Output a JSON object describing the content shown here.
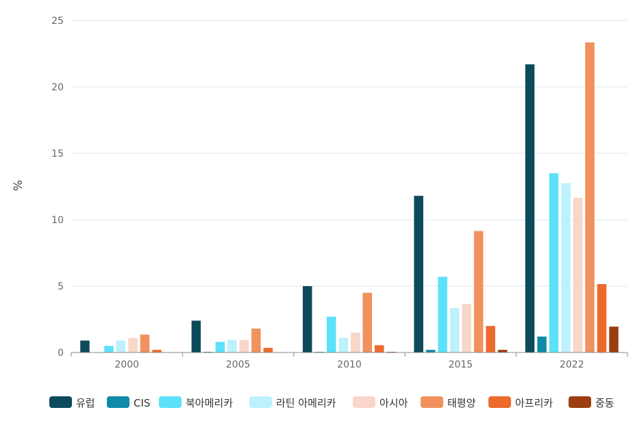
{
  "chart_data": {
    "type": "bar",
    "title": "",
    "xlabel": "",
    "ylabel": "%",
    "ylim": [
      0,
      25
    ],
    "yticks": [
      0,
      5,
      10,
      15,
      20,
      25
    ],
    "grid": true,
    "legend_position": "bottom",
    "categories": [
      "2000",
      "2005",
      "2010",
      "2015",
      "2022"
    ],
    "series": [
      {
        "name": "유럽",
        "color": "#0d4a5c",
        "values": [
          0.9,
          2.4,
          5.0,
          11.8,
          21.7
        ]
      },
      {
        "name": "CIS",
        "color": "#0f8aa8",
        "values": [
          0.0,
          0.05,
          0.05,
          0.2,
          1.2
        ]
      },
      {
        "name": "북아메리카",
        "color": "#5ce1fa",
        "values": [
          0.5,
          0.8,
          2.7,
          5.7,
          13.5
        ]
      },
      {
        "name": "라틴 아메리카",
        "color": "#bdf1fb",
        "values": [
          0.9,
          0.95,
          1.1,
          3.35,
          12.75
        ]
      },
      {
        "name": "아시아",
        "color": "#f8d6c8",
        "values": [
          1.1,
          0.95,
          1.5,
          3.65,
          11.65
        ]
      },
      {
        "name": "태평양",
        "color": "#f0915e",
        "values": [
          1.35,
          1.8,
          4.5,
          9.15,
          23.35
        ]
      },
      {
        "name": "아프리카",
        "color": "#ec6a2c",
        "values": [
          0.2,
          0.35,
          0.55,
          2.0,
          5.15
        ]
      },
      {
        "name": "중동",
        "color": "#9c3e12",
        "values": [
          0.0,
          0.0,
          0.05,
          0.2,
          1.95
        ]
      }
    ]
  }
}
